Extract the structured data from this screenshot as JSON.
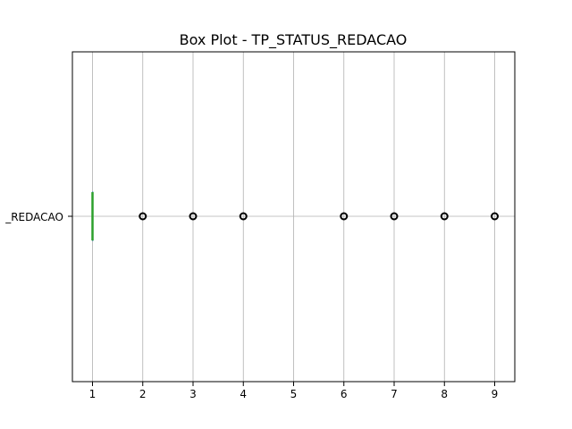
{
  "chart_data": {
    "type": "box",
    "title": "Box Plot - TP_STATUS_REDACAO",
    "xlabel": "",
    "ylabel": "",
    "orientation": "horizontal",
    "category_label": "_REDACAO",
    "xlim": [
      0.6,
      9.4
    ],
    "x_ticks": [
      1,
      2,
      3,
      4,
      5,
      6,
      7,
      8,
      9
    ],
    "grid": true,
    "box": {
      "q1": 1,
      "median": 1,
      "q3": 1,
      "whisker_low": 1,
      "whisker_high": 1
    },
    "outliers": [
      2,
      3,
      4,
      6,
      7,
      8,
      9
    ],
    "median_color": "#2ca02c"
  }
}
